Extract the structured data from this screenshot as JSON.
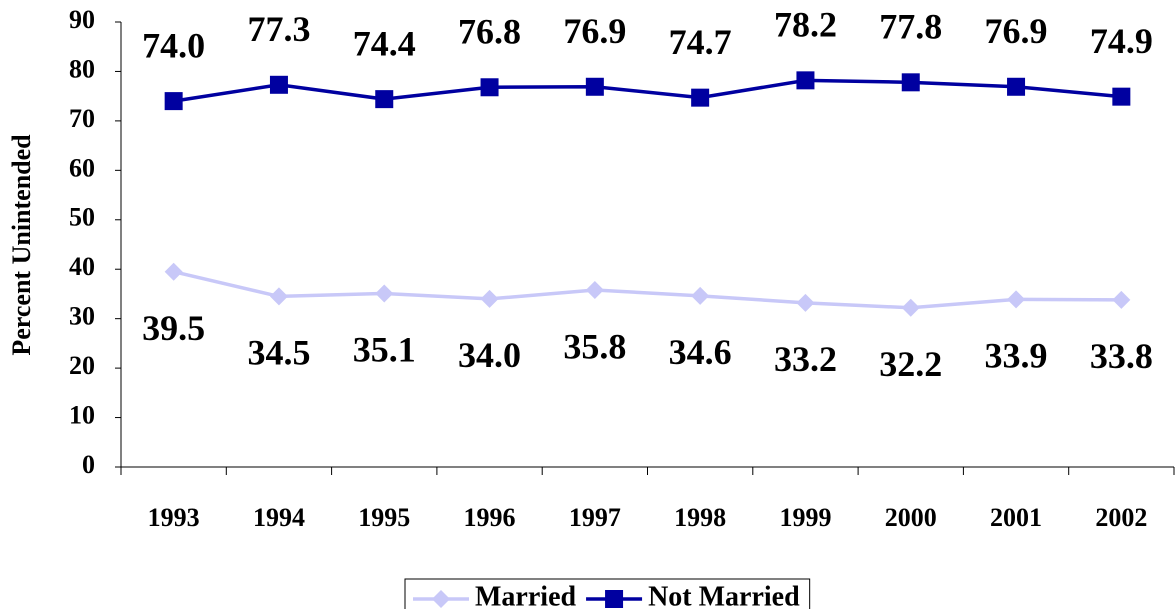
{
  "chart_data": {
    "type": "line",
    "ylabel": "Percent Unintended",
    "categories": [
      "1993",
      "1994",
      "1995",
      "1996",
      "1997",
      "1998",
      "1999",
      "2000",
      "2001",
      "2002"
    ],
    "series": [
      {
        "name": "Married",
        "color": "#c8c8f8",
        "marker": "diamond",
        "values": [
          39.5,
          34.5,
          35.1,
          34.0,
          35.8,
          34.6,
          33.2,
          32.2,
          33.9,
          33.8
        ],
        "value_labels": [
          "39.5",
          "34.5",
          "35.1",
          "34.0",
          "35.8",
          "34.6",
          "33.2",
          "32.2",
          "33.9",
          "33.8"
        ]
      },
      {
        "name": "Not Married",
        "color": "#0000a0",
        "marker": "square",
        "values": [
          74.0,
          77.3,
          74.4,
          76.8,
          76.9,
          74.7,
          78.2,
          77.8,
          76.9,
          74.9
        ],
        "value_labels": [
          "74.0",
          "77.3",
          "74.4",
          "76.8",
          "76.9",
          "74.7",
          "78.2",
          "77.8",
          "76.9",
          "74.9"
        ]
      }
    ],
    "ylim": [
      0,
      90
    ],
    "yticks": [
      0,
      10,
      20,
      30,
      40,
      50,
      60,
      70,
      80,
      90
    ],
    "grid": false,
    "legend": "bottom"
  }
}
